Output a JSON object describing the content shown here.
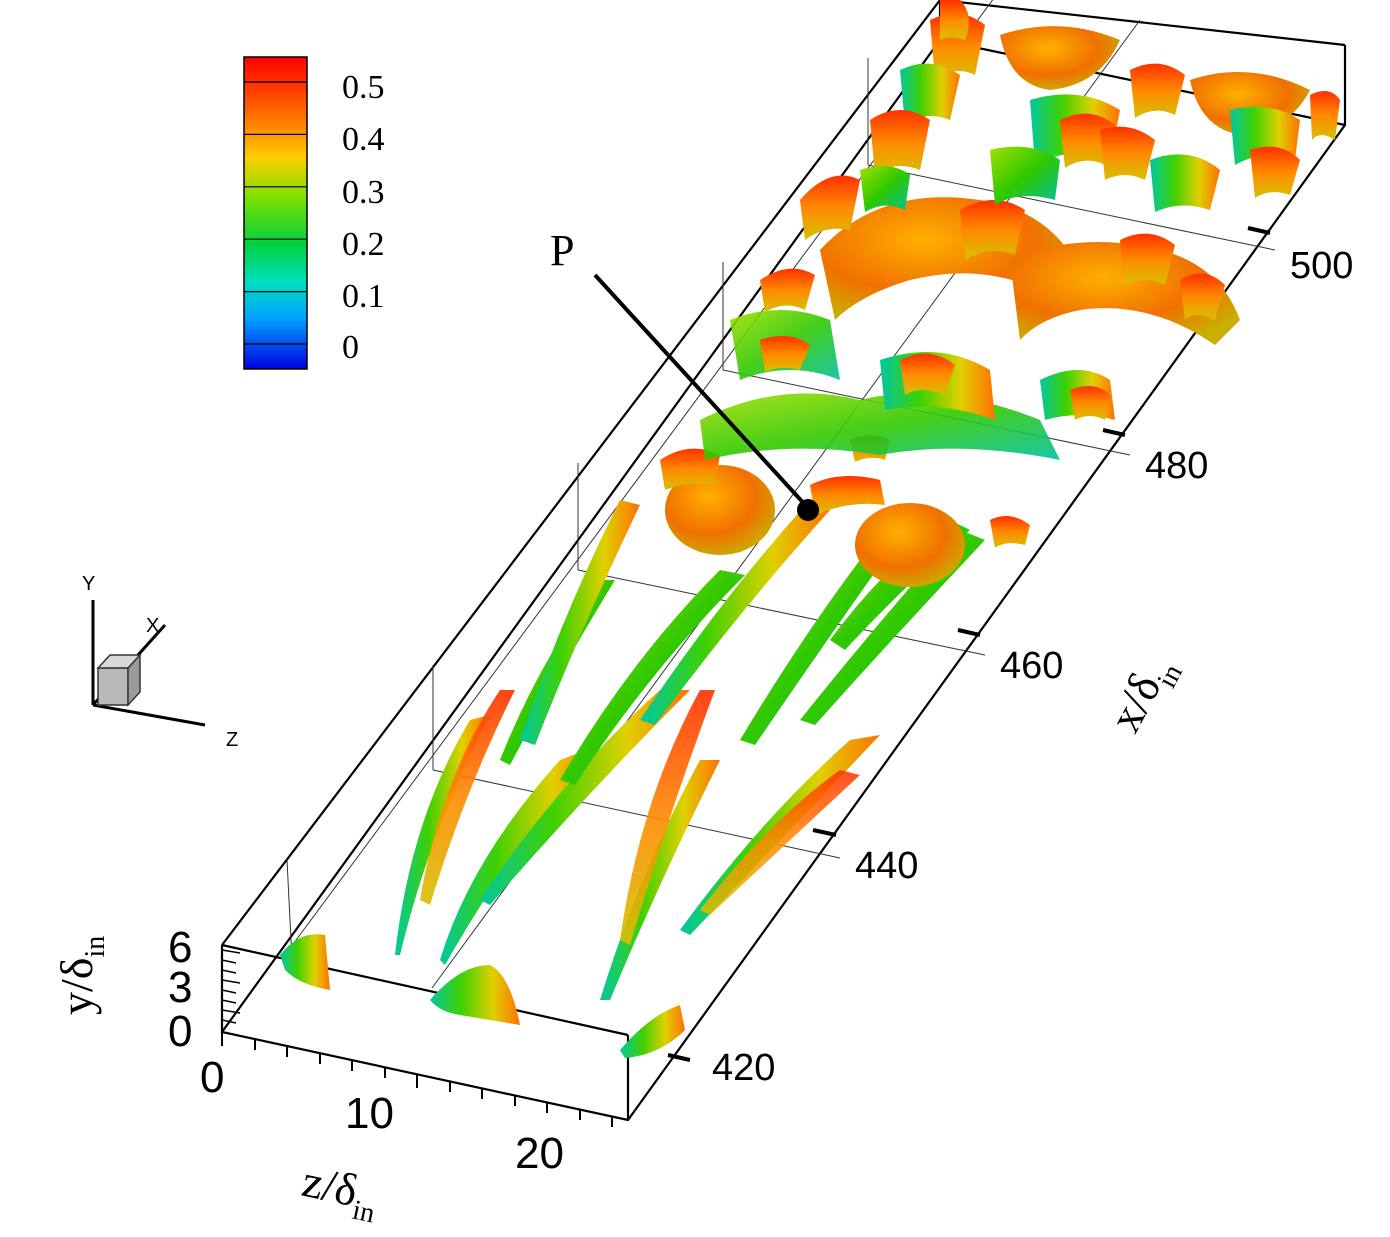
{
  "colorbar": {
    "labels": [
      "0.5",
      "0.4",
      "0.3",
      "0.2",
      "0.1",
      "0"
    ],
    "colors": [
      "#ff0000",
      "#ff5a00",
      "#ffa500",
      "#ffff00",
      "#7fff00",
      "#00e000",
      "#00e0a0",
      "#00c8ff",
      "#0060ff",
      "#0000e0"
    ]
  },
  "annotation": {
    "label": "P"
  },
  "axes": {
    "x_label": "x/δ",
    "x_sub": "in",
    "x_ticks": [
      "420",
      "440",
      "460",
      "480",
      "500"
    ],
    "y_label": "y/δ",
    "y_sub": "in",
    "y_ticks": [
      "6",
      "3",
      "0"
    ],
    "z_label": "z/δ",
    "z_sub": "in",
    "z_ticks": [
      "0",
      "10",
      "20"
    ]
  },
  "triad": {
    "x": "X",
    "y": "Y",
    "z": "Z"
  }
}
